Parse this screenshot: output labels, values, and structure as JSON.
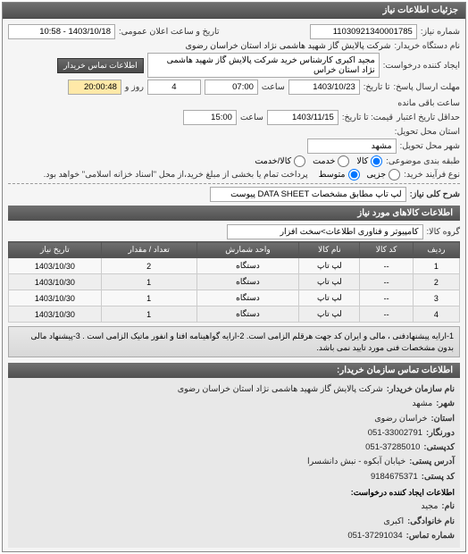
{
  "header": {
    "title": "جزئیات اطلاعات نیاز"
  },
  "need_no": {
    "label": "شماره نیاز:",
    "value": "11030921340001785"
  },
  "announce": {
    "label": "تاریخ و ساعت اعلان عمومی:",
    "value": "1403/10/18 - 10:58"
  },
  "org": {
    "label": "نام دستگاه خریدار:",
    "value": "شرکت پالایش گاز شهید هاشمی نژاد   استان خراسان رضوی"
  },
  "requester": {
    "label": "ایجاد کننده درخواست:",
    "value": "مجید اکبری کارشناس خرید شرکت پالایش گاز شهید هاشمی نژاد   استان خراس",
    "btn": "اطلاعات تماس خریدار"
  },
  "deadline": {
    "label": "مهلت ارسال پاسخ:",
    "to_label": "تا تاریخ:",
    "date": "1403/10/23",
    "time_label": "ساعت",
    "time": "07:00",
    "days": "4",
    "and_label": "روز و",
    "countdown": "20:00:48",
    "remain_label": "ساعت باقی مانده"
  },
  "validity": {
    "label": "حداقل تاریخ اعتبار",
    "sub_label": "قیمت: تا تاریخ:",
    "date": "1403/11/15",
    "time_label": "ساعت",
    "time": "15:00"
  },
  "province": {
    "label": "استان محل تحویل:"
  },
  "city": {
    "label": "شهر محل تحویل:",
    "value": "مشهد"
  },
  "classification": {
    "label": "طبقه بندی موضوعی:",
    "options": [
      "کالا",
      "خدمت",
      "کالا/خدمت"
    ],
    "selected": 0
  },
  "process": {
    "label": "نوع فرآیند خرید:",
    "options": [
      "جزیی",
      "متوسط"
    ],
    "selected": 1,
    "note": "پرداخت تمام یا بخشی از مبلغ خرید،از محل \"اسناد خزانه اسلامی\" خواهد بود."
  },
  "summary": {
    "label": "شرح کلی نیاز:",
    "value": "لپ تاپ مطابق مشخصات DATA SHEET پیوست"
  },
  "goods_section": "اطلاعات کالاهای مورد نیاز",
  "group": {
    "label": "گروه کالا:",
    "value": "کامپیوتر و فناوری اطلاعات>سخت افزار"
  },
  "table": {
    "columns": [
      "ردیف",
      "کد کالا",
      "نام کالا",
      "واحد شمارش",
      "تعداد / مقدار",
      "تاریخ نیاز"
    ],
    "rows": [
      [
        "1",
        "--",
        "لپ تاپ",
        "دستگاه",
        "2",
        "1403/10/30"
      ],
      [
        "2",
        "--",
        "لپ تاپ",
        "دستگاه",
        "1",
        "1403/10/30"
      ],
      [
        "3",
        "--",
        "لپ تاپ",
        "دستگاه",
        "1",
        "1403/10/30"
      ],
      [
        "4",
        "--",
        "لپ تاپ",
        "دستگاه",
        "1",
        "1403/10/30"
      ]
    ]
  },
  "note": "1-ارایه پیشنهادفنی ، مالی و ایران کد جهت هرقلم الزامی است. 2-ارایه گواهینامه افتا و انفور ماتیک الزامی است . 3-پیشنهاد مالی بدون مشخصات فنی مورد تایید نمی باشد.",
  "contact_section": "اطلاعات تماس سازمان خریدار:",
  "contact": {
    "org_label": "نام سازمان خریدار:",
    "org": "شرکت پالایش گاز شهید هاشمی نژاد استان خراسان رضوی",
    "city_label": "شهر:",
    "city": "مشهد",
    "province_label": "استان:",
    "province": "خراسان رضوی",
    "fax_label": "دورنگار:",
    "fax": "051-33002791",
    "post_label": "کدپستی:",
    "post": "051-37285010",
    "address_label": "آدرس پستی:",
    "address": "خیابان آبکوه - نبش دانشسرا",
    "postcode_label": "کد پستی:",
    "postcode": "9184675371",
    "creator_section": "اطلاعات ایجاد کننده درخواست:",
    "name_label": "نام:",
    "name": "مجید",
    "family_label": "نام خانوادگی:",
    "family": "اکبری",
    "phone_label": "شماره تماس:",
    "phone": "051-37291034"
  }
}
